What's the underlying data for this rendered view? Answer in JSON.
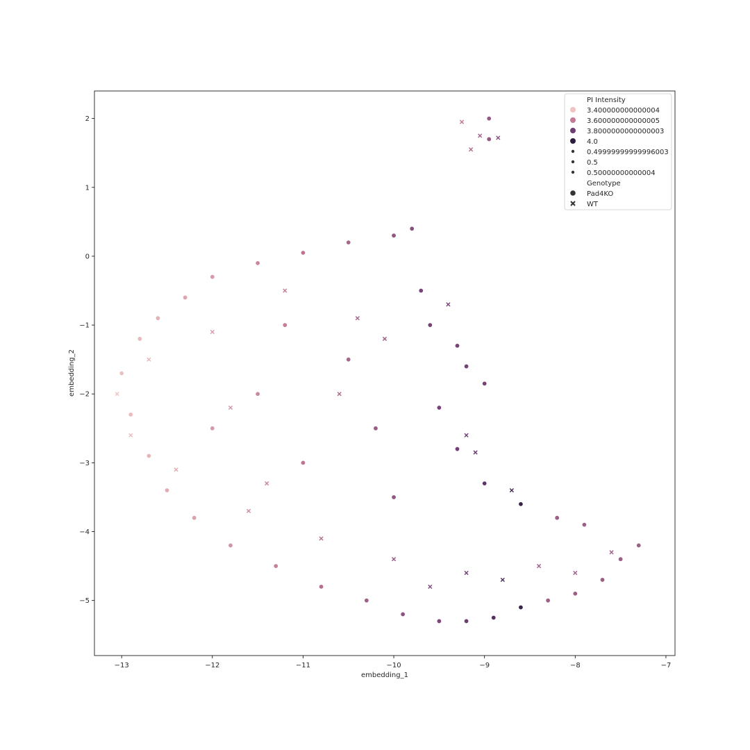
{
  "chart_data": {
    "type": "scatter",
    "title": "",
    "xlabel": "embedding_1",
    "ylabel": "embedding_2",
    "xlim": [
      -13.3,
      -6.9
    ],
    "ylim": [
      -5.8,
      2.4
    ],
    "x_ticks": [
      -13,
      -12,
      -11,
      -10,
      -9,
      -8,
      -7
    ],
    "x_tick_labels": [
      "−13",
      "−12",
      "−11",
      "−10",
      "−9",
      "−8",
      "−7"
    ],
    "y_ticks": [
      -5,
      -4,
      -3,
      -2,
      -1,
      0,
      1,
      2
    ],
    "y_tick_labels": [
      "−5",
      "−4",
      "−3",
      "−2",
      "−1",
      "0",
      "1",
      "2"
    ],
    "grid": false,
    "legend_placement": "top-right",
    "legend": {
      "hue_title": "PI Intensity",
      "hue_levels": [
        {
          "label": "3.400000000000004",
          "color": "#efc4c3"
        },
        {
          "label": "3.600000000000005",
          "color": "#c47a96"
        },
        {
          "label": "3.8000000000000003",
          "color": "#6e3d74"
        },
        {
          "label": "4.0",
          "color": "#2c1d3e"
        }
      ],
      "size_levels": [
        {
          "label": "0.49999999999996003"
        },
        {
          "label": "0.5"
        },
        {
          "label": "0.50000000000004"
        }
      ],
      "style_title": "Genotype",
      "style_levels": [
        {
          "label": "Pad4KO",
          "marker": "circle"
        },
        {
          "label": "WT",
          "marker": "x"
        }
      ]
    },
    "colors": {
      "low": "#efc4c3",
      "mid": "#c47a96",
      "high": "#6e3d74",
      "max": "#2c1d3e"
    },
    "series": [
      {
        "name": "Pad4KO",
        "marker": "circle",
        "points": [
          [
            -13.0,
            -1.7
          ],
          [
            -12.9,
            -2.3
          ],
          [
            -12.8,
            -1.2
          ],
          [
            -12.7,
            -2.9
          ],
          [
            -12.6,
            -0.9
          ],
          [
            -12.5,
            -3.4
          ],
          [
            -12.3,
            -0.6
          ],
          [
            -12.2,
            -3.8
          ],
          [
            -12.0,
            -0.3
          ],
          [
            -11.8,
            -4.2
          ],
          [
            -11.5,
            -0.1
          ],
          [
            -11.3,
            -4.5
          ],
          [
            -11.0,
            0.05
          ],
          [
            -10.8,
            -4.8
          ],
          [
            -10.5,
            0.2
          ],
          [
            -10.3,
            -5.0
          ],
          [
            -10.0,
            0.3
          ],
          [
            -9.9,
            -5.2
          ],
          [
            -9.8,
            0.4
          ],
          [
            -9.5,
            -5.3
          ],
          [
            -9.2,
            -5.3
          ],
          [
            -8.9,
            -5.25
          ],
          [
            -8.6,
            -5.1
          ],
          [
            -8.3,
            -5.0
          ],
          [
            -8.0,
            -4.9
          ],
          [
            -7.7,
            -4.7
          ],
          [
            -7.5,
            -4.4
          ],
          [
            -7.3,
            -4.2
          ],
          [
            -9.3,
            -1.3
          ],
          [
            -9.2,
            -1.6
          ],
          [
            -9.0,
            -1.85
          ],
          [
            -9.7,
            -0.5
          ],
          [
            -9.6,
            -1.0
          ],
          [
            -9.5,
            -2.2
          ],
          [
            -9.3,
            -2.8
          ],
          [
            -9.0,
            -3.3
          ],
          [
            -8.6,
            -3.6
          ],
          [
            -8.2,
            -3.8
          ],
          [
            -7.9,
            -3.9
          ],
          [
            -8.95,
            2.0
          ],
          [
            -8.95,
            1.7
          ],
          [
            -11.5,
            -2.0
          ],
          [
            -11.0,
            -3.0
          ],
          [
            -10.5,
            -1.5
          ],
          [
            -10.0,
            -3.5
          ],
          [
            -12.0,
            -2.5
          ],
          [
            -11.2,
            -1.0
          ],
          [
            -10.2,
            -2.5
          ]
        ]
      },
      {
        "name": "WT",
        "marker": "x",
        "points": [
          [
            -13.05,
            -2.0
          ],
          [
            -12.9,
            -2.6
          ],
          [
            -12.7,
            -1.5
          ],
          [
            -12.4,
            -3.1
          ],
          [
            -12.0,
            -1.1
          ],
          [
            -11.6,
            -3.7
          ],
          [
            -11.2,
            -0.5
          ],
          [
            -10.8,
            -4.1
          ],
          [
            -10.4,
            -0.9
          ],
          [
            -10.0,
            -4.4
          ],
          [
            -9.6,
            -4.8
          ],
          [
            -9.2,
            -4.6
          ],
          [
            -8.8,
            -4.7
          ],
          [
            -8.4,
            -4.5
          ],
          [
            -8.0,
            -4.6
          ],
          [
            -7.6,
            -4.3
          ],
          [
            -9.4,
            -0.7
          ],
          [
            -9.2,
            -2.6
          ],
          [
            -9.1,
            -2.85
          ],
          [
            -8.7,
            -3.4
          ],
          [
            -9.05,
            1.75
          ],
          [
            -8.85,
            1.72
          ],
          [
            -9.25,
            1.95
          ],
          [
            -9.15,
            1.55
          ],
          [
            -11.8,
            -2.2
          ],
          [
            -10.6,
            -2.0
          ],
          [
            -10.1,
            -1.2
          ],
          [
            -11.4,
            -3.3
          ]
        ]
      }
    ]
  }
}
